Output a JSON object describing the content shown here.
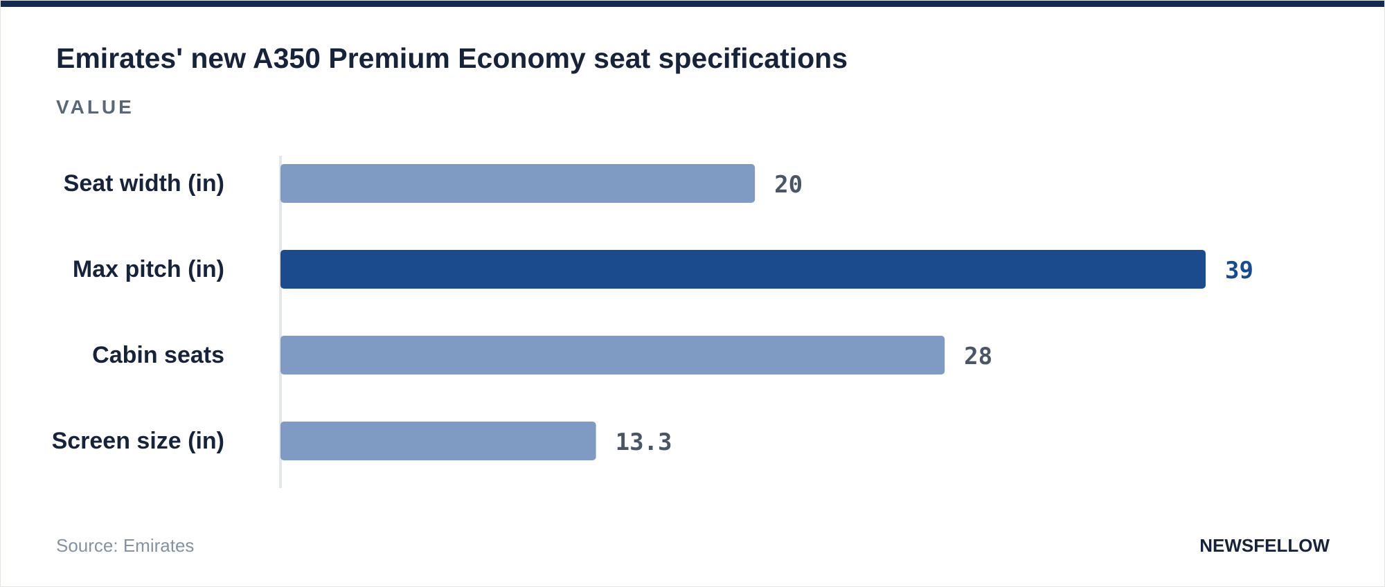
{
  "header": {
    "title": "Emirates' new A350 Premium Economy seat specifications",
    "subtitle": "VALUE"
  },
  "footer": {
    "source": "Source: Emirates",
    "brand": "NEWSFELLOW"
  },
  "colors": {
    "top_bar": "#142a52",
    "bar_default": "#7f9bc4",
    "bar_highlight": "#1b4b8c",
    "value_default": "#4a5566",
    "value_highlight": "#1b4b8c",
    "label": "#16233a",
    "axis": "#e3e6ea"
  },
  "chart_data": {
    "type": "bar",
    "orientation": "horizontal",
    "categories": [
      "Seat width (in)",
      "Max pitch (in)",
      "Cabin seats",
      "Screen size (in)"
    ],
    "values": [
      20,
      39,
      28,
      13.3
    ],
    "value_labels": [
      "20",
      "39",
      "28",
      "13.3"
    ],
    "highlight_index": 1,
    "xlim": [
      0,
      39
    ],
    "grid": false,
    "legend": "none"
  }
}
